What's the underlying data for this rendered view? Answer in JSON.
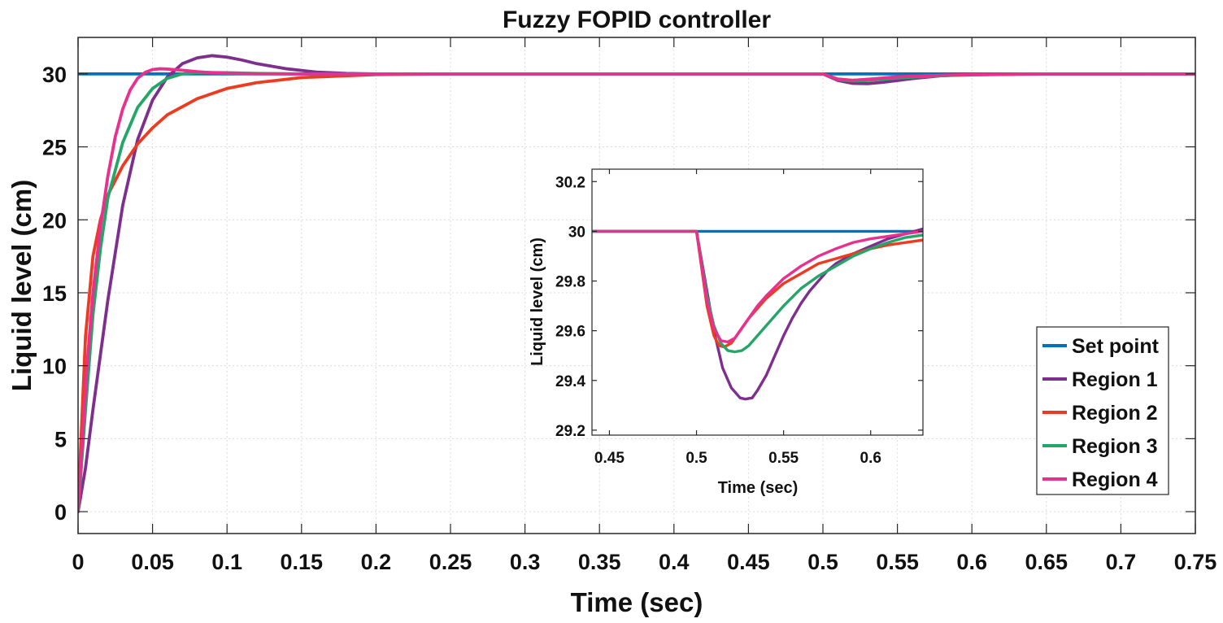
{
  "chart_data": [
    {
      "id": "main",
      "type": "line",
      "title": "Fuzzy FOPID controller",
      "xlabel": "Time (sec)",
      "ylabel": "Liquid level (cm)",
      "xlim": [
        0,
        0.75
      ],
      "ylim": [
        -1.5,
        32.5
      ],
      "xticks": [
        0,
        0.05,
        0.1,
        0.15,
        0.2,
        0.25,
        0.3,
        0.35,
        0.4,
        0.45,
        0.5,
        0.55,
        0.6,
        0.65,
        0.7,
        0.75
      ],
      "xtick_labels": [
        "0",
        "0.05",
        "0.1",
        "0.15",
        "0.2",
        "0.25",
        "0.3",
        "0.35",
        "0.4",
        "0.45",
        "0.5",
        "0.55",
        "0.6",
        "0.65",
        "0.7",
        "0.75"
      ],
      "yticks": [
        0,
        5,
        10,
        15,
        20,
        25,
        30
      ],
      "ytick_labels": [
        "0",
        "5",
        "10",
        "15",
        "20",
        "25",
        "30"
      ],
      "grid": true,
      "legend_position": "bottom-right",
      "series": [
        {
          "name": "Set point",
          "color": "#0072BD",
          "x": [
            0,
            0.75
          ],
          "y": [
            30,
            30
          ]
        },
        {
          "name": "Region 1",
          "color": "#7E2F8E",
          "x": [
            0,
            0.005,
            0.01,
            0.02,
            0.03,
            0.04,
            0.05,
            0.06,
            0.07,
            0.08,
            0.09,
            0.1,
            0.11,
            0.12,
            0.14,
            0.16,
            0.18,
            0.2,
            0.25,
            0.3,
            0.4,
            0.5,
            0.51,
            0.52,
            0.53,
            0.54,
            0.55,
            0.56,
            0.58,
            0.6,
            0.62,
            0.65,
            0.75
          ],
          "y": [
            0,
            3,
            7,
            14.5,
            21,
            25.5,
            28.2,
            29.8,
            30.7,
            31.1,
            31.25,
            31.15,
            30.95,
            30.7,
            30.35,
            30.12,
            30.03,
            30.0,
            30.0,
            30.0,
            30.0,
            30.0,
            29.55,
            29.35,
            29.33,
            29.42,
            29.55,
            29.68,
            29.88,
            29.97,
            30.0,
            30.0,
            30.0
          ]
        },
        {
          "name": "Region 2",
          "color": "#ED3B20",
          "x": [
            0,
            0.002,
            0.005,
            0.01,
            0.015,
            0.02,
            0.03,
            0.04,
            0.05,
            0.06,
            0.08,
            0.1,
            0.12,
            0.15,
            0.2,
            0.25,
            0.3,
            0.4,
            0.5,
            0.51,
            0.52,
            0.53,
            0.55,
            0.58,
            0.6,
            0.63,
            0.65,
            0.75
          ],
          "y": [
            0,
            5,
            12,
            17.5,
            20,
            21.7,
            23.7,
            25.2,
            26.3,
            27.2,
            28.3,
            29.0,
            29.4,
            29.75,
            29.95,
            30.0,
            30.0,
            30.0,
            30.0,
            29.65,
            29.56,
            29.62,
            29.75,
            29.88,
            29.93,
            29.97,
            29.99,
            30.0
          ]
        },
        {
          "name": "Region 3",
          "color": "#23A667",
          "x": [
            0,
            0.005,
            0.01,
            0.015,
            0.02,
            0.03,
            0.04,
            0.05,
            0.06,
            0.07,
            0.08,
            0.1,
            0.12,
            0.15,
            0.2,
            0.3,
            0.4,
            0.5,
            0.51,
            0.52,
            0.53,
            0.55,
            0.58,
            0.6,
            0.63,
            0.65,
            0.75
          ],
          "y": [
            0,
            7,
            13.5,
            18,
            21.5,
            25.3,
            27.7,
            29.0,
            29.7,
            30.0,
            30.1,
            30.08,
            30.03,
            30.0,
            30.0,
            30.0,
            30.0,
            30.0,
            29.6,
            29.52,
            29.55,
            29.72,
            29.88,
            29.95,
            29.98,
            30.0,
            30.0
          ]
        },
        {
          "name": "Region 4",
          "color": "#E8308F",
          "x": [
            0,
            0.003,
            0.006,
            0.01,
            0.015,
            0.02,
            0.025,
            0.03,
            0.035,
            0.04,
            0.045,
            0.05,
            0.055,
            0.06,
            0.07,
            0.08,
            0.09,
            0.1,
            0.12,
            0.15,
            0.2,
            0.3,
            0.4,
            0.5,
            0.51,
            0.52,
            0.53,
            0.55,
            0.58,
            0.6,
            0.63,
            0.65,
            0.75
          ],
          "y": [
            0,
            5,
            10,
            15,
            19.5,
            23,
            25.7,
            27.6,
            28.9,
            29.7,
            30.1,
            30.3,
            30.35,
            30.33,
            30.25,
            30.15,
            30.08,
            30.04,
            30.01,
            30.0,
            30.0,
            30.0,
            30.0,
            30.0,
            29.62,
            29.56,
            29.63,
            29.8,
            29.91,
            29.96,
            29.99,
            30.0,
            30.0
          ]
        }
      ]
    },
    {
      "id": "inset",
      "type": "line",
      "title": "",
      "xlabel": "Time (sec)",
      "ylabel": "Liquid level (cm)",
      "xlim": [
        0.44,
        0.63
      ],
      "ylim": [
        29.18,
        30.25
      ],
      "xticks": [
        0.45,
        0.5,
        0.55,
        0.6
      ],
      "xtick_labels": [
        "0.45",
        "0.5",
        "0.55",
        "0.6"
      ],
      "yticks": [
        29.2,
        29.4,
        29.6,
        29.8,
        30,
        30.2
      ],
      "ytick_labels": [
        "29.2",
        "29.4",
        "29.6",
        "29.8",
        "30",
        "30.2"
      ],
      "grid": false,
      "series": [
        {
          "name": "Set point",
          "color": "#0072BD",
          "x": [
            0.44,
            0.63
          ],
          "y": [
            30,
            30
          ]
        },
        {
          "name": "Region 1",
          "color": "#7E2F8E",
          "x": [
            0.44,
            0.5,
            0.505,
            0.51,
            0.515,
            0.52,
            0.525,
            0.528,
            0.532,
            0.535,
            0.54,
            0.545,
            0.55,
            0.555,
            0.56,
            0.565,
            0.57,
            0.575,
            0.58,
            0.59,
            0.6,
            0.61,
            0.62,
            0.63
          ],
          "y": [
            30,
            30,
            29.8,
            29.6,
            29.45,
            29.37,
            29.33,
            29.325,
            29.33,
            29.36,
            29.42,
            29.5,
            29.58,
            29.65,
            29.71,
            29.76,
            29.8,
            29.84,
            29.87,
            29.91,
            29.94,
            29.97,
            29.99,
            30.01
          ]
        },
        {
          "name": "Region 2",
          "color": "#ED3B20",
          "x": [
            0.44,
            0.5,
            0.503,
            0.506,
            0.51,
            0.513,
            0.516,
            0.52,
            0.525,
            0.53,
            0.54,
            0.55,
            0.56,
            0.57,
            0.58,
            0.59,
            0.6,
            0.61,
            0.62,
            0.63
          ],
          "y": [
            30,
            30,
            29.85,
            29.7,
            29.58,
            29.54,
            29.535,
            29.55,
            29.6,
            29.65,
            29.73,
            29.79,
            29.83,
            29.87,
            29.89,
            29.91,
            29.93,
            29.945,
            29.955,
            29.965
          ]
        },
        {
          "name": "Region 3",
          "color": "#23A667",
          "x": [
            0.44,
            0.5,
            0.503,
            0.506,
            0.51,
            0.514,
            0.518,
            0.522,
            0.526,
            0.53,
            0.535,
            0.54,
            0.55,
            0.56,
            0.57,
            0.58,
            0.59,
            0.6,
            0.61,
            0.62,
            0.63
          ],
          "y": [
            30,
            30,
            29.87,
            29.74,
            29.62,
            29.55,
            29.52,
            29.515,
            29.52,
            29.54,
            29.58,
            29.62,
            29.7,
            29.77,
            29.82,
            29.86,
            29.9,
            29.93,
            29.955,
            29.975,
            29.985
          ]
        },
        {
          "name": "Region 4",
          "color": "#E8308F",
          "x": [
            0.44,
            0.5,
            0.503,
            0.506,
            0.51,
            0.514,
            0.518,
            0.522,
            0.526,
            0.53,
            0.535,
            0.54,
            0.55,
            0.56,
            0.57,
            0.58,
            0.59,
            0.6,
            0.61,
            0.62,
            0.63
          ],
          "y": [
            30,
            30,
            29.86,
            29.72,
            29.61,
            29.56,
            29.555,
            29.57,
            29.61,
            29.65,
            29.7,
            29.74,
            29.81,
            29.86,
            29.9,
            29.93,
            29.955,
            29.97,
            29.98,
            29.99,
            30.0
          ]
        }
      ]
    }
  ]
}
